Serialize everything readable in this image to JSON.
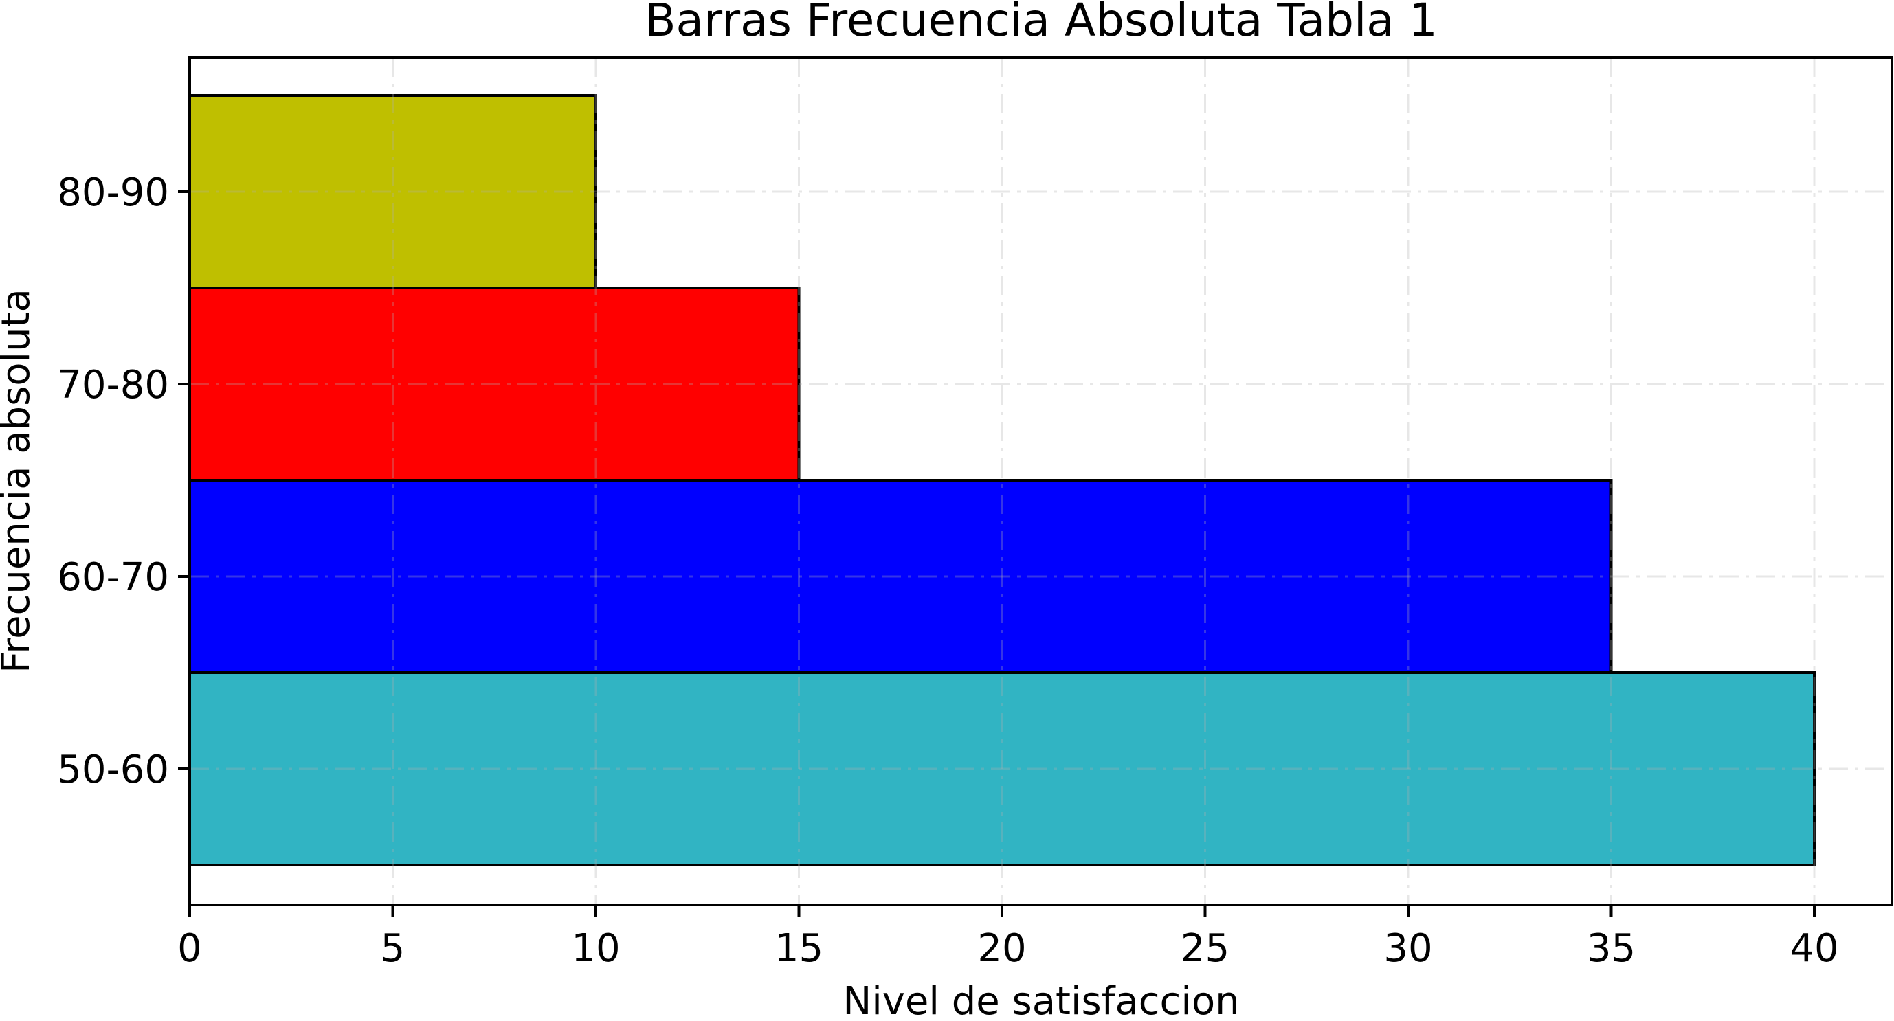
{
  "chart_data": {
    "type": "bar",
    "orientation": "horizontal",
    "title": "Barras Frecuencia Absoluta Tabla 1",
    "xlabel": "Nivel de satisfaccion",
    "ylabel": "Frecuencia absoluta",
    "categories": [
      "50-60",
      "60-70",
      "70-80",
      "80-90"
    ],
    "values": [
      40,
      35,
      15,
      10
    ],
    "colors": [
      "#31B4C3",
      "#0000FF",
      "#FF0000",
      "#BFBF00"
    ],
    "bar_edgecolor": "#000000",
    "xlim": [
      0,
      42
    ],
    "xticks": [
      0,
      5,
      10,
      15,
      20,
      25,
      30,
      35,
      40
    ],
    "xtick_labels": [
      "0",
      "5",
      "10",
      "15",
      "20",
      "25",
      "30",
      "35",
      "40"
    ],
    "grid": true,
    "grid_style": "dashdot",
    "legend": null
  },
  "labels": {
    "title": "Barras Frecuencia Absoluta Tabla 1",
    "xlabel": "Nivel de satisfaccion",
    "ylabel": "Frecuencia absoluta"
  }
}
